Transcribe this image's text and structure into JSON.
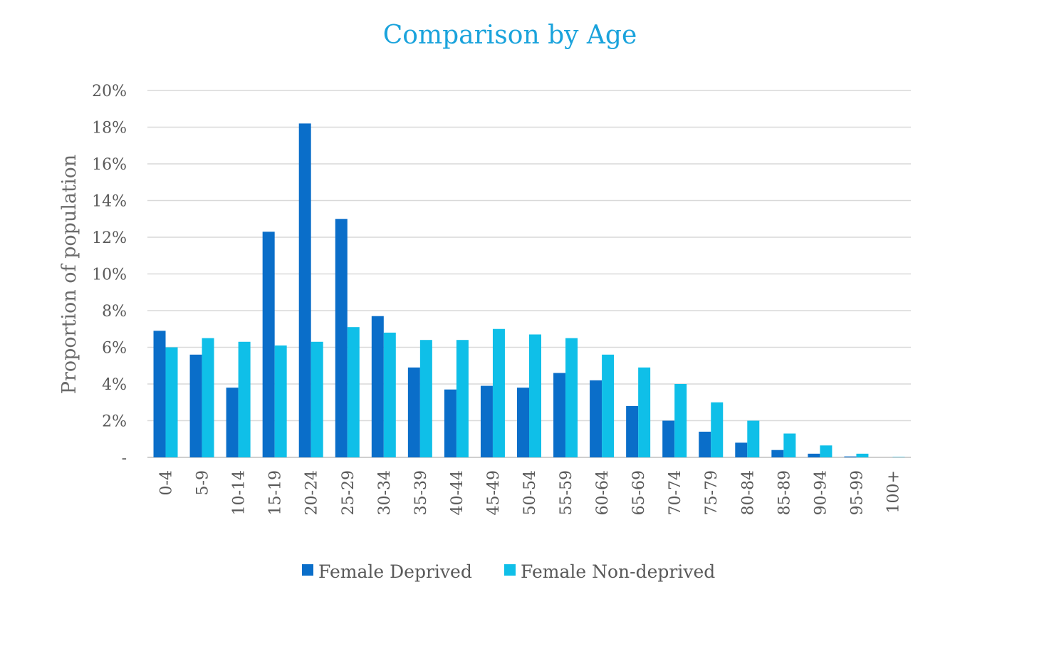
{
  "chart_data": {
    "type": "bar",
    "title": "Comparison by Age",
    "xlabel": "",
    "ylabel": "Proportion of population",
    "ylim": [
      0,
      20
    ],
    "ytick_values": [
      0,
      2,
      4,
      6,
      8,
      10,
      12,
      14,
      16,
      18,
      20
    ],
    "ytick_labels": [
      "-",
      "2%",
      "4%",
      "6%",
      "8%",
      "10%",
      "12%",
      "14%",
      "16%",
      "18%",
      "20%"
    ],
    "grid": true,
    "legend_position": "bottom",
    "categories": [
      "0-4",
      "5-9",
      "10-14",
      "15-19",
      "20-24",
      "25-29",
      "30-34",
      "35-39",
      "40-44",
      "45-49",
      "50-54",
      "55-59",
      "60-64",
      "65-69",
      "70-74",
      "75-79",
      "80-84",
      "85-89",
      "90-94",
      "95-99",
      "100+"
    ],
    "series": [
      {
        "name": "Female Deprived",
        "color": "#0a6ec9",
        "values": [
          6.9,
          5.6,
          3.8,
          12.3,
          18.2,
          13.0,
          7.7,
          4.9,
          3.7,
          3.9,
          3.8,
          4.6,
          4.2,
          2.8,
          2.0,
          1.4,
          0.8,
          0.4,
          0.2,
          0.05,
          0.0
        ]
      },
      {
        "name": "Female Non-deprived",
        "color": "#0fbfe8",
        "values": [
          6.0,
          6.5,
          6.3,
          6.1,
          6.3,
          7.1,
          6.8,
          6.4,
          6.4,
          7.0,
          6.7,
          6.5,
          5.6,
          4.9,
          4.0,
          3.0,
          2.0,
          1.3,
          0.65,
          0.2,
          0.02
        ]
      }
    ]
  }
}
